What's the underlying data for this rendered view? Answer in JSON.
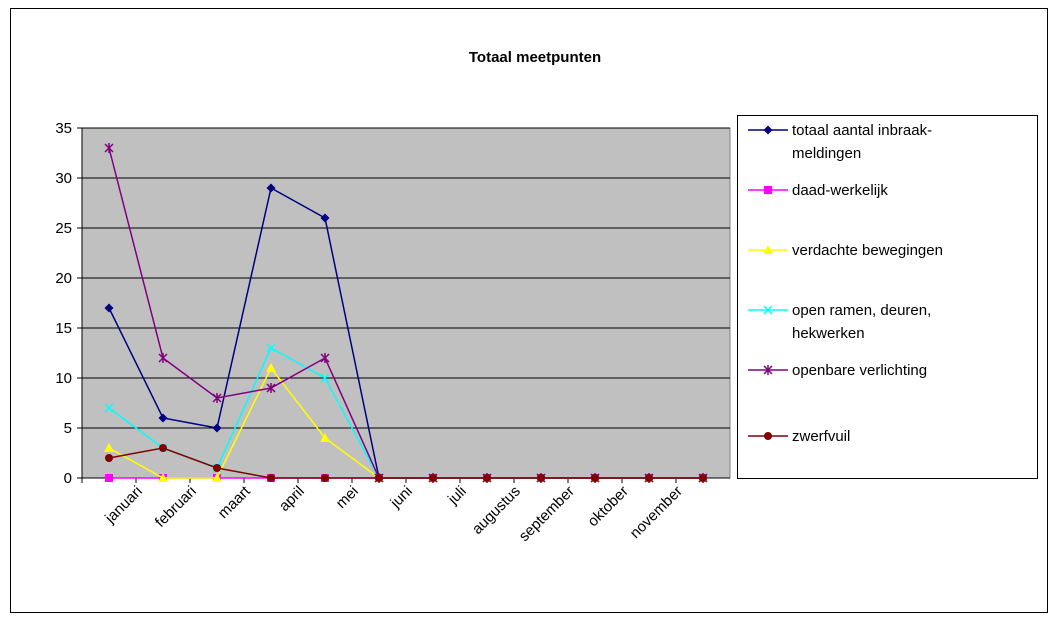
{
  "chart_data": {
    "type": "line",
    "title": "Totaal meetpunten",
    "categories": [
      "januari",
      "februari",
      "maart",
      "april",
      "mei",
      "juni",
      "juli",
      "augustus",
      "september",
      "oktober",
      "november",
      null
    ],
    "ylim": [
      0,
      35
    ],
    "yticks": [
      0,
      5,
      10,
      15,
      20,
      25,
      30,
      35
    ],
    "grid": true,
    "legend": "right",
    "series": [
      {
        "name": "totaal aantal inbraak-meldingen",
        "color": "#000080",
        "marker": "diamond",
        "values": [
          17,
          6,
          5,
          29,
          26,
          0,
          0,
          0,
          0,
          0,
          0,
          0
        ]
      },
      {
        "name": "daad-werkelijk",
        "color": "#ff00ff",
        "marker": "square",
        "values": [
          0,
          0,
          0,
          0,
          0,
          0,
          0,
          0,
          0,
          0,
          0,
          0
        ]
      },
      {
        "name": "verdachte bewegingen",
        "color": "#ffff00",
        "marker": "triangle",
        "values": [
          3,
          0,
          0,
          11,
          4,
          0,
          0,
          0,
          0,
          0,
          0,
          0
        ]
      },
      {
        "name": "open ramen, deuren, hekwerken",
        "color": "#00ffff",
        "marker": "x",
        "values": [
          7,
          3,
          1,
          13,
          10,
          0,
          0,
          0,
          0,
          0,
          0,
          0
        ]
      },
      {
        "name": "openbare verlichting",
        "color": "#800080",
        "marker": "star",
        "values": [
          33,
          12,
          8,
          9,
          12,
          0,
          0,
          0,
          0,
          0,
          0,
          0
        ]
      },
      {
        "name": "zwerfvuil",
        "color": "#800000",
        "marker": "circle",
        "values": [
          2,
          3,
          1,
          0,
          0,
          0,
          0,
          0,
          0,
          0,
          0,
          0
        ]
      }
    ]
  }
}
